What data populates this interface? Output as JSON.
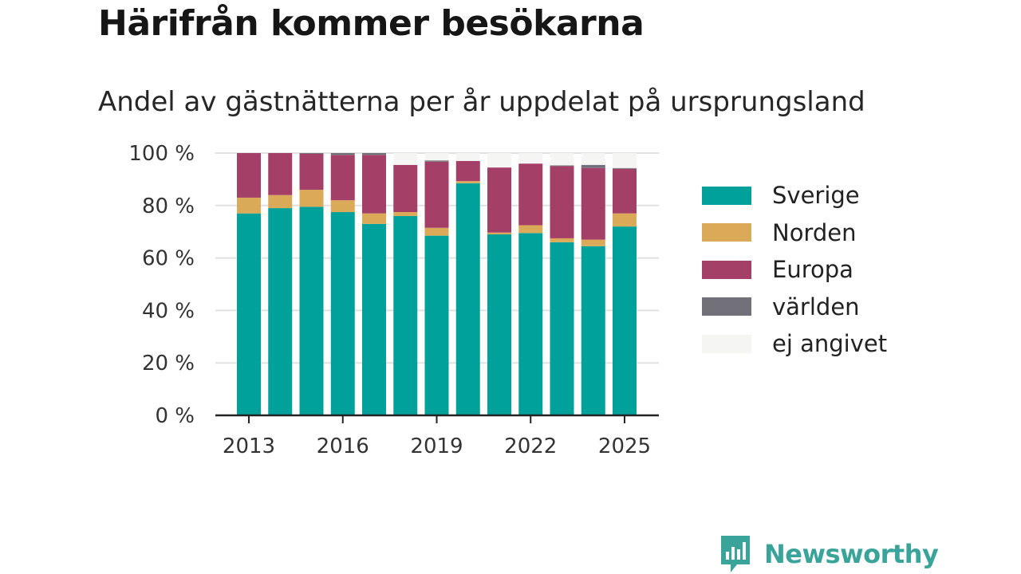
{
  "header": {
    "title": "Härifrån kommer besökarna",
    "subtitle": "Andel av gästnätterna per år uppdelat på ursprungsland"
  },
  "brand": {
    "name": "Newsworthy",
    "color": "#3aa39a"
  },
  "chart_data": {
    "type": "bar",
    "stacked": true,
    "title": "Härifrån kommer besökarna",
    "subtitle": "Andel av gästnätterna per år uppdelat på ursprungsland",
    "categories": [
      2013,
      2014,
      2015,
      2016,
      2017,
      2018,
      2019,
      2020,
      2021,
      2022,
      2023,
      2024,
      2025
    ],
    "series": [
      {
        "name": "Sverige",
        "color": "#00a19a",
        "values": [
          77,
          79,
          79.5,
          77.5,
          73,
          76,
          68.5,
          88.5,
          69,
          69.5,
          66,
          64.5,
          72
        ]
      },
      {
        "name": "Norden",
        "color": "#dbaa58",
        "values": [
          6,
          5,
          6.5,
          4.5,
          4,
          1.5,
          3,
          0.8,
          0.7,
          3,
          1.5,
          2.5,
          5
        ]
      },
      {
        "name": "Europa",
        "color": "#a43f68",
        "values": [
          17,
          16,
          13.7,
          17.3,
          22.3,
          18,
          25.2,
          7.7,
          24.8,
          23.5,
          27.5,
          27.3,
          17
        ]
      },
      {
        "name": "världen",
        "color": "#72717a",
        "values": [
          0,
          0,
          0.3,
          0.7,
          0.7,
          0,
          0.5,
          0,
          0,
          0,
          0.3,
          1.2,
          0.3
        ]
      },
      {
        "name": "ej angivet",
        "color": "#f5f5f3",
        "values": [
          0,
          0,
          0,
          0,
          0,
          4.5,
          2.8,
          3,
          5.5,
          4,
          4.7,
          4.5,
          5.7
        ]
      }
    ],
    "x_ticks": [
      "2013",
      "2016",
      "2019",
      "2022",
      "2025"
    ],
    "y_ticks": [
      0,
      20,
      40,
      60,
      80,
      100
    ],
    "y_tick_labels": [
      "0 %",
      "20 %",
      "40 %",
      "60 %",
      "80 %",
      "100 %"
    ],
    "ylim": [
      0,
      100
    ],
    "grid": "horizontal",
    "legend": "right"
  }
}
